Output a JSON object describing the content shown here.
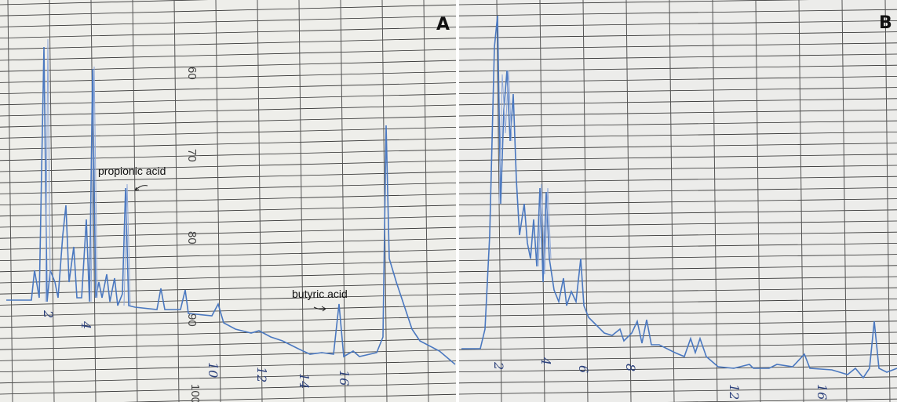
{
  "panels": [
    {
      "label": "A",
      "scale_labels": [
        "60",
        "70",
        "80",
        "90",
        "100"
      ],
      "annotations": [
        "propionic acid",
        "butyric acid"
      ],
      "handwritten": [
        "2",
        "4",
        "10",
        "12",
        "14",
        "16"
      ]
    },
    {
      "label": "B",
      "handwritten": [
        "2",
        "4",
        "6",
        "8",
        "12",
        "16"
      ]
    }
  ]
}
